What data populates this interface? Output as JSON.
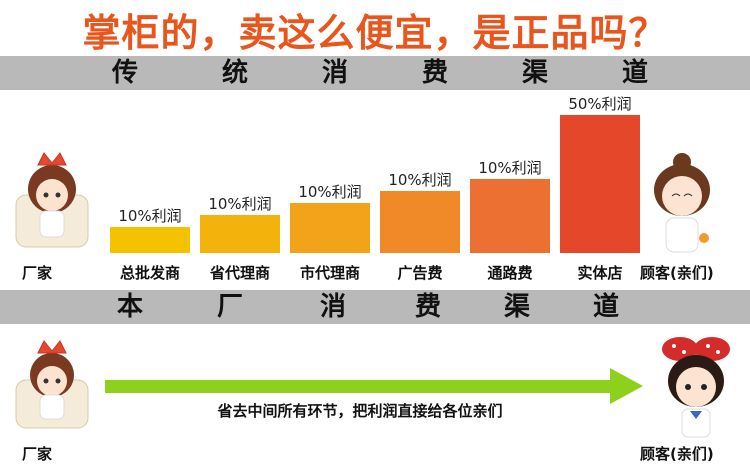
{
  "title": "掌柜的，卖这么便宜，是正品吗？",
  "traditional": {
    "header": [
      "传",
      "统",
      "消",
      "费",
      "渠",
      "道"
    ],
    "start_label": "厂家",
    "end_label": "顾客(亲们)",
    "stages": [
      {
        "name": "总批发商",
        "profit_label": "10%利润",
        "profit": 10,
        "color": "#f5c200"
      },
      {
        "name": "省代理商",
        "profit_label": "10%利润",
        "profit": 10,
        "color": "#f4b20c"
      },
      {
        "name": "市代理商",
        "profit_label": "10%利润",
        "profit": 10,
        "color": "#f3a31a"
      },
      {
        "name": "广告费",
        "profit_label": "10%利润",
        "profit": 10,
        "color": "#f08a28"
      },
      {
        "name": "通路费",
        "profit_label": "10%利润",
        "profit": 10,
        "color": "#ec7032"
      },
      {
        "name": "实体店",
        "profit_label": "50%利润",
        "profit": 50,
        "color": "#e5472a"
      }
    ]
  },
  "direct": {
    "header": [
      "本",
      "厂",
      "消",
      "费",
      "渠",
      "道"
    ],
    "start_label": "厂家",
    "end_label": "顾客(亲们)",
    "arrow_text": "省去中间所有环节，把利润直接给各位亲们",
    "arrow_color": "#8ed11c"
  },
  "colors": {
    "title": "#e8561e",
    "band": "#b9b9b9"
  }
}
